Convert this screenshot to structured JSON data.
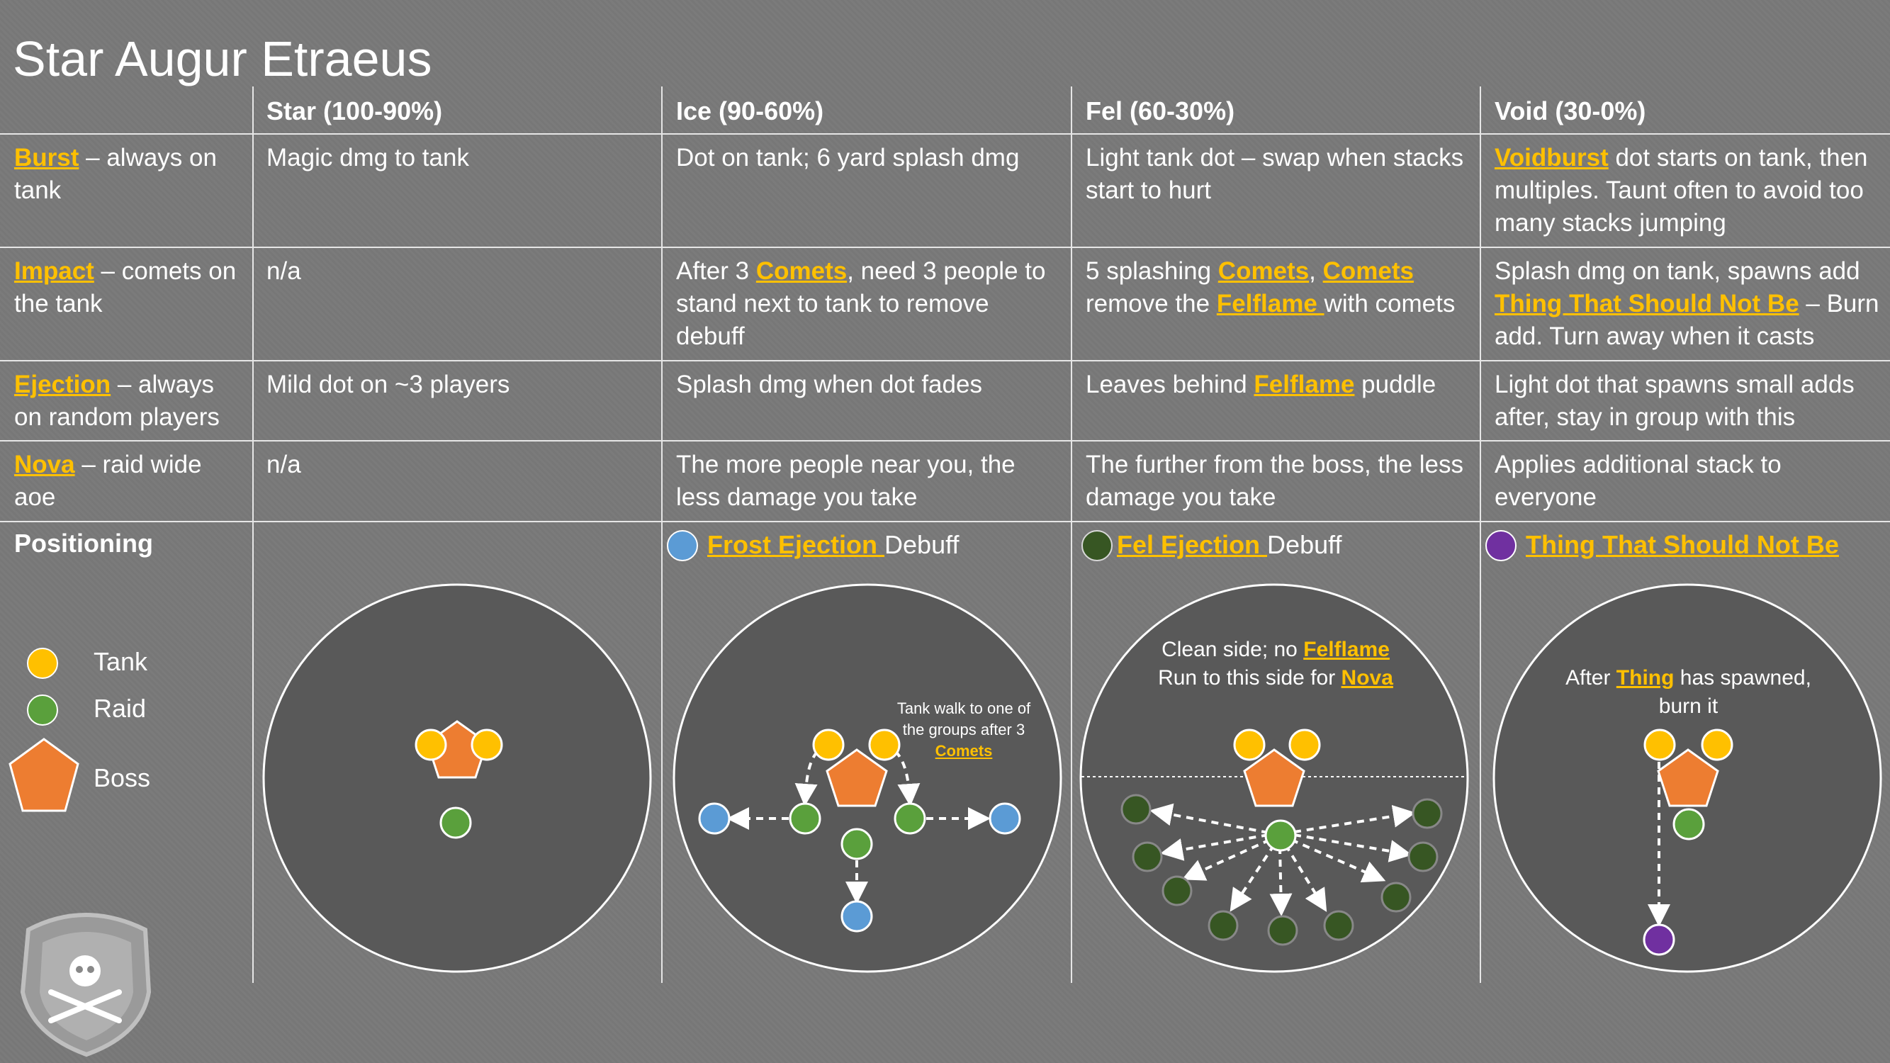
{
  "title": "Star Augur Etraeus",
  "headers": [
    "Star (100-90%)",
    "Ice (90-60%)",
    "Fel (60-30%)",
    "Void (30-0%)"
  ],
  "rows": [
    {
      "ability_link": "Burst",
      "ability_rest": " – always on tank",
      "star": "Magic dmg to tank",
      "ice": "Dot on tank; 6 yard splash dmg",
      "fel": "Light tank dot – swap when stacks start to hurt",
      "void_link": "Voidburst",
      "void_rest": " dot starts on tank, then multiples.  Taunt often to avoid too many stacks jumping"
    },
    {
      "ability_link": "Impact",
      "ability_rest": " – comets on the tank",
      "star": "n/a",
      "ice_pre": "After 3 ",
      "ice_link": "Comets",
      "ice_post": ", need 3 people to stand next to tank to remove debuff",
      "fel_pre": "5 splashing ",
      "fel_link1": "Comets",
      "fel_sep": ", ",
      "fel_link2": "Comets",
      "fel_mid": " remove the ",
      "fel_link3": "Felflame ",
      "fel_post": "with comets",
      "void_pre": "Splash dmg on tank, spawns add ",
      "void_link": "Thing That Should Not Be",
      "void_post": " – Burn add.  Turn away when it casts"
    },
    {
      "ability_link": "Ejection",
      "ability_rest": " – always on random players",
      "star": "Mild dot on ~3 players",
      "ice": "Splash dmg when dot fades",
      "fel_pre": "Leaves behind ",
      "fel_link": "Felflame",
      "fel_post": " puddle",
      "void": "Light dot that spawns small adds after, stay in group with this"
    },
    {
      "ability_link": "Nova",
      "ability_rest": " – raid wide aoe",
      "star": "n/a",
      "ice": "The more people near you, the less damage you take",
      "fel": "The further from the boss, the less damage you take",
      "void": "Applies additional stack to everyone"
    }
  ],
  "positioning": {
    "label": "Positioning",
    "legend": [
      {
        "label": "Tank",
        "color": "#ffc000",
        "icon": "yellow-circle-icon"
      },
      {
        "label": "Raid",
        "color": "#5aa03c",
        "icon": "green-circle-icon"
      },
      {
        "label": "Boss",
        "color": "#ed7d31",
        "icon": "orange-pentagon-icon"
      }
    ],
    "ice_sub_link": "Frost Ejection ",
    "ice_sub_rest": "Debuff",
    "fel_sub_link": "Fel Ejection ",
    "fel_sub_rest": "Debuff",
    "void_sub_link": "Thing That Should Not Be",
    "ice_note_pre": "Tank walk to one of the groups after 3",
    "ice_note_link": "Comets",
    "fel_note1_pre": "Clean side; no ",
    "fel_note1_link": "Felflame",
    "fel_note2_pre": "Run to this side for ",
    "fel_note2_link": "Nova",
    "void_note_pre": "After ",
    "void_note_link": "Thing",
    "void_note_post": " has spawned, burn it"
  },
  "colors": {
    "tank": "#ffc000",
    "raid": "#5aa03c",
    "boss": "#ed7d31",
    "frost": "#5b9bd5",
    "fel": "#375623",
    "void": "#7030a0",
    "link": "#ffc000",
    "arena": "#595959"
  }
}
